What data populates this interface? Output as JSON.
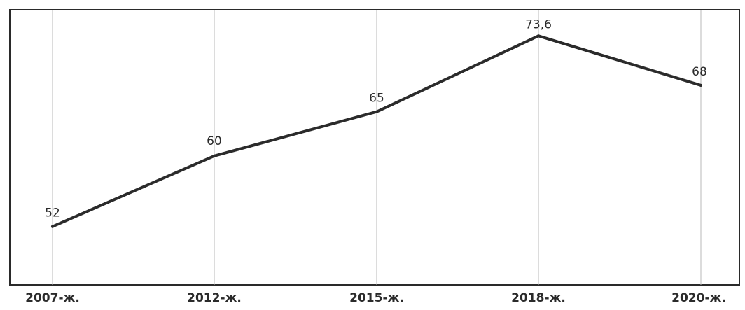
{
  "chart_data": {
    "type": "line",
    "categories": [
      "2007-ж.",
      "2012-ж.",
      "2015-ж.",
      "2018-ж.",
      "2020-ж."
    ],
    "values": [
      52,
      60,
      65,
      73.6,
      68
    ],
    "data_labels": [
      "52",
      "60",
      "65",
      "73,6",
      "68"
    ],
    "title": "",
    "xlabel": "",
    "ylabel": "",
    "ylim": [
      45,
      76
    ],
    "grid": "vertical",
    "legend": "none",
    "line_color": "#2b2b2b"
  }
}
